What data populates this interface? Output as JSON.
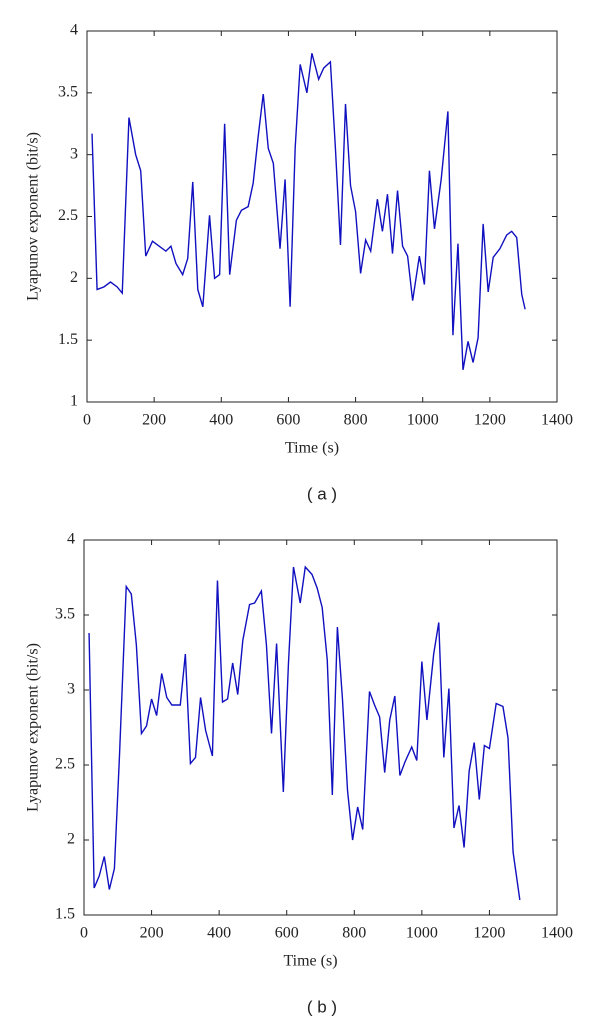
{
  "chart_data": [
    {
      "type": "line",
      "xlabel": "Time (s)",
      "ylabel": "Lyapunov exponent (bit/s)",
      "caption": "( a )",
      "xlim": [
        0,
        1400
      ],
      "xticks": [
        0,
        200,
        400,
        600,
        800,
        1000,
        1200,
        1400
      ],
      "ylim": [
        1,
        4
      ],
      "yticks": [
        1,
        1.5,
        2,
        2.5,
        3,
        3.5,
        4
      ],
      "color": "#1010c0",
      "x": [
        15,
        30,
        50,
        70,
        90,
        105,
        125,
        145,
        160,
        175,
        195,
        215,
        235,
        250,
        265,
        285,
        300,
        315,
        330,
        345,
        365,
        380,
        395,
        410,
        425,
        445,
        460,
        480,
        495,
        510,
        525,
        540,
        555,
        575,
        590,
        605,
        620,
        635,
        655,
        670,
        690,
        705,
        725,
        740,
        755,
        770,
        785,
        800,
        815,
        830,
        845,
        865,
        880,
        895,
        910,
        925,
        940,
        955,
        970,
        990,
        1005,
        1020,
        1035,
        1055,
        1075,
        1090,
        1105,
        1120,
        1135,
        1150,
        1165,
        1180,
        1195,
        1210,
        1230,
        1250,
        1265,
        1280,
        1295,
        1305
      ],
      "values": [
        3.17,
        1.91,
        1.93,
        1.97,
        1.93,
        1.88,
        3.3,
        3.0,
        2.87,
        2.18,
        2.3,
        2.26,
        2.22,
        2.26,
        2.12,
        2.03,
        2.16,
        2.78,
        1.91,
        1.77,
        2.51,
        2.0,
        2.03,
        3.25,
        2.03,
        2.47,
        2.55,
        2.58,
        2.77,
        3.15,
        3.49,
        3.05,
        2.93,
        2.24,
        2.8,
        1.77,
        3.05,
        3.73,
        3.5,
        3.82,
        3.61,
        3.7,
        3.75,
        3.05,
        2.27,
        3.41,
        2.75,
        2.54,
        2.04,
        2.31,
        2.22,
        2.64,
        2.38,
        2.68,
        2.2,
        2.71,
        2.26,
        2.18,
        1.82,
        2.18,
        1.95,
        2.87,
        2.4,
        2.8,
        3.35,
        1.54,
        2.28,
        1.26,
        1.49,
        1.32,
        1.52,
        2.44,
        1.89,
        2.17,
        2.24,
        2.35,
        2.38,
        2.33,
        1.87,
        1.75
      ]
    },
    {
      "type": "line",
      "xlabel": "Time (s)",
      "ylabel": "Lyapunov exponent (bit/s)",
      "caption": "( b )",
      "xlim": [
        0,
        1400
      ],
      "xticks": [
        0,
        200,
        400,
        600,
        800,
        1000,
        1200,
        1400
      ],
      "ylim": [
        1.5,
        4
      ],
      "yticks": [
        1.5,
        2,
        2.5,
        3,
        3.5,
        4
      ],
      "color": "#1010c0",
      "x": [
        15,
        30,
        45,
        60,
        75,
        90,
        105,
        125,
        140,
        155,
        170,
        185,
        200,
        215,
        230,
        245,
        260,
        285,
        300,
        315,
        330,
        345,
        360,
        380,
        395,
        410,
        425,
        440,
        455,
        470,
        490,
        505,
        525,
        540,
        555,
        570,
        590,
        605,
        620,
        640,
        655,
        675,
        690,
        705,
        720,
        735,
        750,
        765,
        780,
        795,
        810,
        825,
        845,
        860,
        875,
        890,
        905,
        920,
        935,
        950,
        970,
        985,
        1000,
        1015,
        1035,
        1050,
        1065,
        1080,
        1095,
        1110,
        1125,
        1140,
        1155,
        1170,
        1185,
        1200,
        1220,
        1240,
        1255,
        1270,
        1290
      ],
      "values": [
        3.38,
        1.68,
        1.76,
        1.89,
        1.67,
        1.81,
        2.56,
        3.69,
        3.64,
        3.3,
        2.71,
        2.76,
        2.94,
        2.83,
        3.11,
        2.95,
        2.9,
        2.9,
        3.24,
        2.51,
        2.55,
        2.95,
        2.73,
        2.56,
        3.73,
        2.92,
        2.94,
        3.18,
        2.97,
        3.33,
        3.57,
        3.58,
        3.66,
        3.3,
        2.71,
        3.31,
        2.32,
        3.17,
        3.82,
        3.58,
        3.82,
        3.77,
        3.68,
        3.55,
        3.2,
        2.3,
        3.42,
        2.94,
        2.33,
        2.0,
        2.22,
        2.07,
        2.99,
        2.9,
        2.82,
        2.45,
        2.8,
        2.96,
        2.43,
        2.52,
        2.62,
        2.53,
        3.19,
        2.8,
        3.24,
        3.45,
        2.55,
        3.01,
        2.08,
        2.23,
        1.95,
        2.46,
        2.65,
        2.27,
        2.63,
        2.61,
        2.91,
        2.89,
        2.68,
        1.92,
        1.6
      ]
    }
  ]
}
